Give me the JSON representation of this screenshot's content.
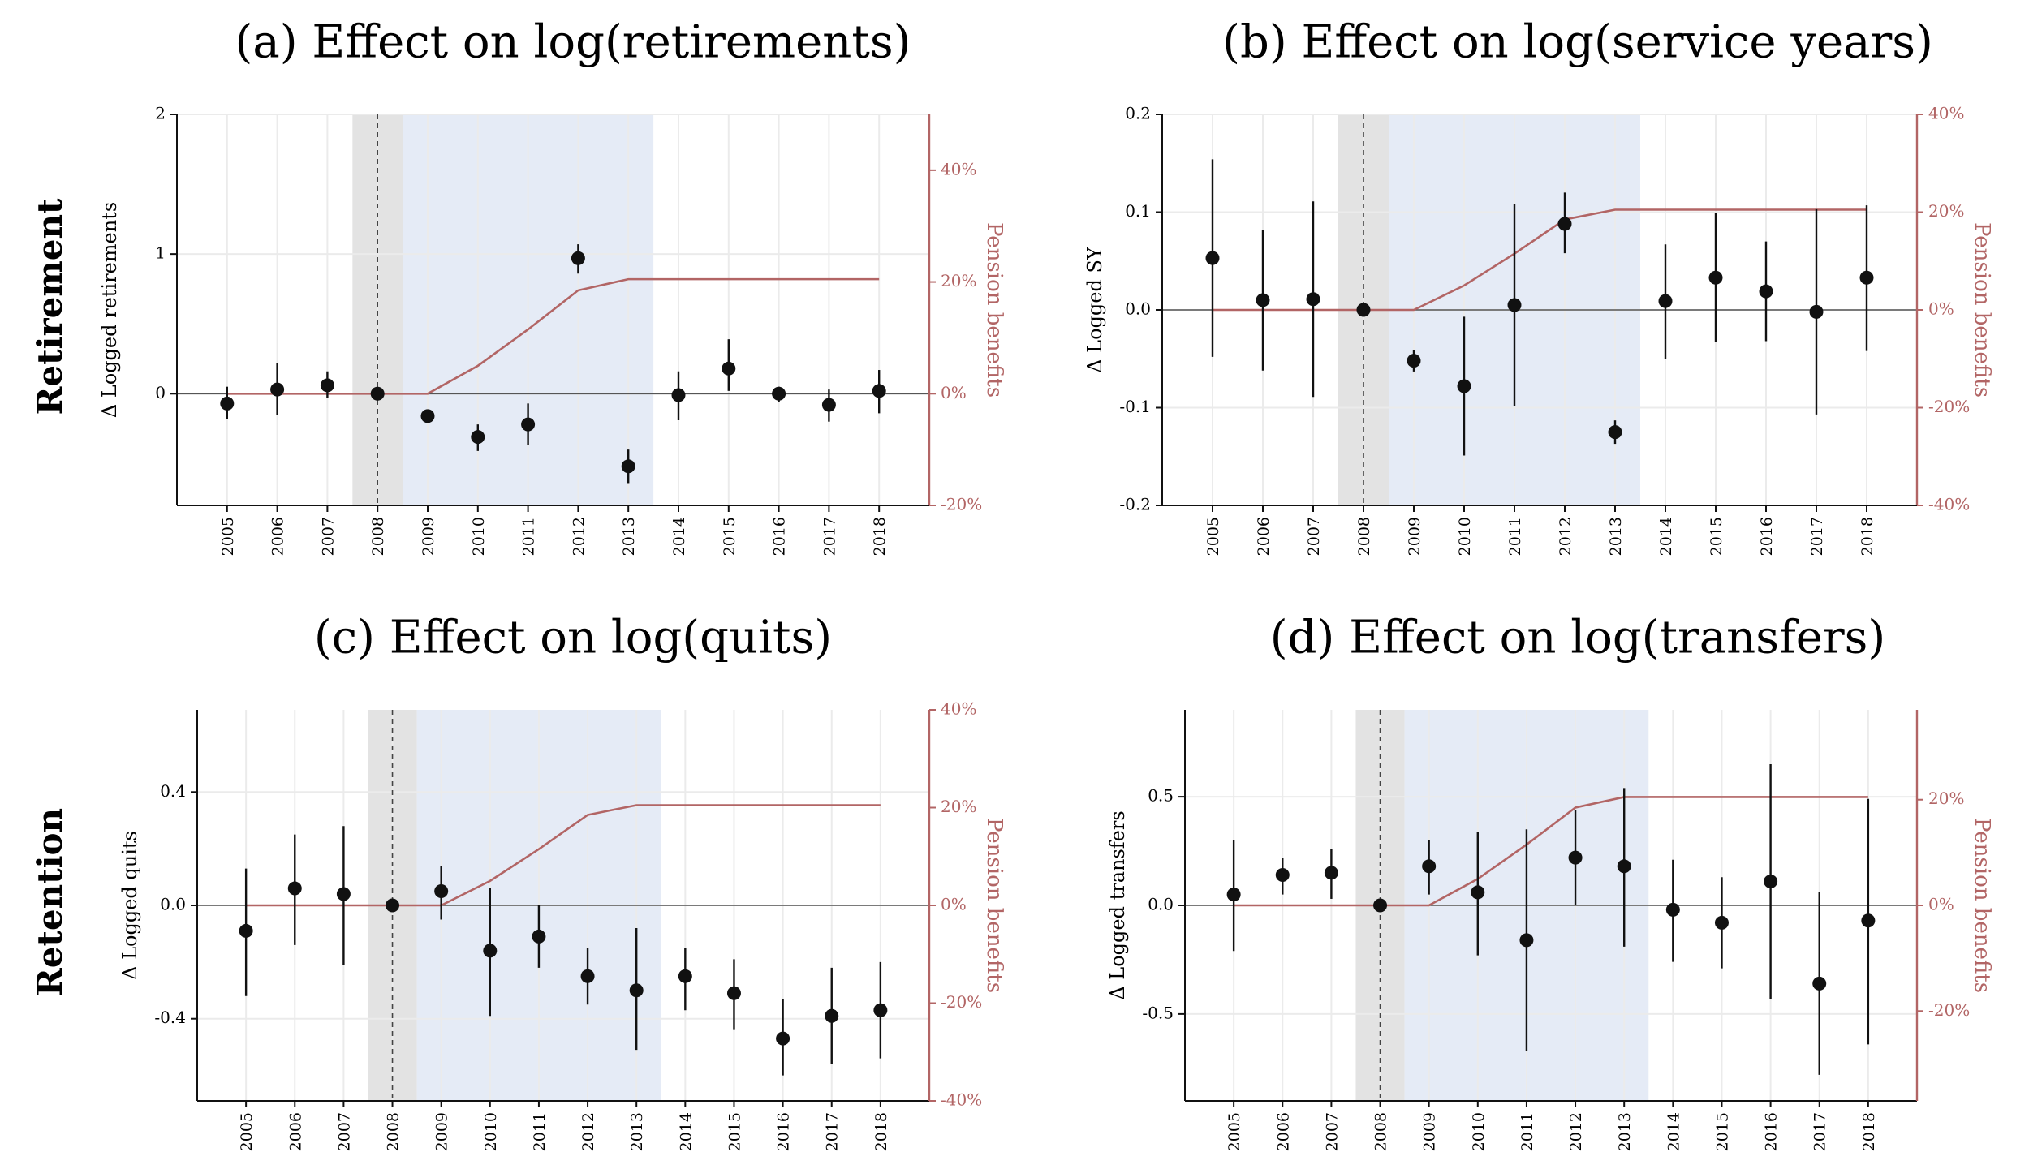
{
  "row_labels": [
    "Retirement",
    "Retention"
  ],
  "colors": {
    "pension_line": "#b26565",
    "pension_axis": "#b26565",
    "pension_text": "#b26565",
    "point": "#111111",
    "grey_band": "#e3e3e3",
    "blue_band": "#e5ebf6",
    "grid": "#ebebeb"
  },
  "chart_data": [
    {
      "type": "scatter",
      "title": "(a) Effect on log(retirements)",
      "ylabel": "Δ Logged retirements",
      "y2label": "Pension benefits",
      "categories": [
        "2005",
        "2006",
        "2007",
        "2008",
        "2009",
        "2010",
        "2011",
        "2012",
        "2013",
        "2014",
        "2015",
        "2016",
        "2017",
        "2018"
      ],
      "ylim": [
        -0.8,
        2
      ],
      "yticks": [
        0,
        1,
        2
      ],
      "ytick_labels": [
        "0",
        "1",
        "2"
      ],
      "y2lim": [
        -20,
        50
      ],
      "y2ticks": [
        -20,
        0,
        20,
        40
      ],
      "y2tick_labels": [
        "-20%",
        "0%",
        "20%",
        "40%"
      ],
      "grey_band": [
        "2007.5",
        "2008.5"
      ],
      "blue_band": [
        "2008.5",
        "2013.5"
      ],
      "reference_year": "2008",
      "estimates": [
        -0.07,
        0.03,
        0.06,
        0.0,
        -0.16,
        -0.31,
        -0.22,
        0.97,
        -0.52,
        -0.01,
        0.18,
        0.0,
        -0.08,
        0.02
      ],
      "ci_lower": [
        -0.18,
        -0.15,
        -0.03,
        0.0,
        -0.19,
        -0.41,
        -0.37,
        0.86,
        -0.64,
        -0.19,
        0.02,
        -0.06,
        -0.2,
        -0.14
      ],
      "ci_upper": [
        0.05,
        0.22,
        0.16,
        0.0,
        -0.13,
        -0.22,
        -0.07,
        1.07,
        -0.4,
        0.16,
        0.39,
        0.05,
        0.03,
        0.17
      ],
      "pension_benefits": [
        0,
        0,
        0,
        0,
        0,
        5,
        11.5,
        18.5,
        20.5,
        20.5,
        20.5,
        20.5,
        20.5,
        20.5
      ]
    },
    {
      "type": "scatter",
      "title": "(b) Effect on log(service years)",
      "ylabel": "Δ Logged SY",
      "y2label": "Pension benefits",
      "categories": [
        "2005",
        "2006",
        "2007",
        "2008",
        "2009",
        "2010",
        "2011",
        "2012",
        "2013",
        "2014",
        "2015",
        "2016",
        "2017",
        "2018"
      ],
      "ylim": [
        -0.2,
        0.2
      ],
      "yticks": [
        -0.2,
        -0.1,
        0.0,
        0.1,
        0.2
      ],
      "ytick_labels": [
        "-0.2",
        "-0.1",
        "0.0",
        "0.1",
        "0.2"
      ],
      "y2lim": [
        -40,
        40
      ],
      "y2ticks": [
        -40,
        -20,
        0,
        20,
        40
      ],
      "y2tick_labels": [
        "-40%",
        "-20%",
        "0%",
        "20%",
        "40%"
      ],
      "grey_band": [
        "2007.5",
        "2008.5"
      ],
      "blue_band": [
        "2008.5",
        "2013.5"
      ],
      "reference_year": "2008",
      "estimates": [
        0.053,
        0.01,
        0.011,
        0.0,
        -0.052,
        -0.078,
        0.005,
        0.088,
        -0.125,
        0.009,
        0.033,
        0.019,
        -0.002,
        0.033
      ],
      "ci_lower": [
        -0.048,
        -0.062,
        -0.089,
        0.0,
        -0.063,
        -0.149,
        -0.098,
        0.058,
        -0.137,
        -0.05,
        -0.033,
        -0.032,
        -0.107,
        -0.042
      ],
      "ci_upper": [
        0.154,
        0.082,
        0.111,
        0.0,
        -0.041,
        -0.007,
        0.108,
        0.12,
        -0.113,
        0.067,
        0.099,
        0.07,
        0.103,
        0.107
      ],
      "pension_benefits": [
        0,
        0,
        0,
        0,
        0,
        5,
        11.5,
        18.5,
        20.5,
        20.5,
        20.5,
        20.5,
        20.5,
        20.5
      ]
    },
    {
      "type": "scatter",
      "title": "(c) Effect on log(quits)",
      "ylabel": "Δ Logged quits",
      "y2label": "Pension benefits",
      "categories": [
        "2005",
        "2006",
        "2007",
        "2008",
        "2009",
        "2010",
        "2011",
        "2012",
        "2013",
        "2014",
        "2015",
        "2016",
        "2017",
        "2018"
      ],
      "ylim": [
        -0.69,
        0.69
      ],
      "yticks": [
        -0.4,
        0.0,
        0.4
      ],
      "ytick_labels": [
        "-0.4",
        "0.0",
        "0.4"
      ],
      "y2lim": [
        -40,
        40
      ],
      "y2ticks": [
        -40,
        -20,
        0,
        20,
        40
      ],
      "y2tick_labels": [
        "-40%",
        "-20%",
        "0%",
        "20%",
        "40%"
      ],
      "grey_band": [
        "2007.5",
        "2008.5"
      ],
      "blue_band": [
        "2008.5",
        "2013.5"
      ],
      "reference_year": "2008",
      "estimates": [
        -0.09,
        0.06,
        0.04,
        0.0,
        0.05,
        -0.16,
        -0.11,
        -0.25,
        -0.3,
        -0.25,
        -0.31,
        -0.47,
        -0.39,
        -0.37
      ],
      "ci_lower": [
        -0.32,
        -0.14,
        -0.21,
        0.0,
        -0.05,
        -0.39,
        -0.22,
        -0.35,
        -0.51,
        -0.37,
        -0.44,
        -0.6,
        -0.56,
        -0.54
      ],
      "ci_upper": [
        0.13,
        0.25,
        0.28,
        0.0,
        0.14,
        0.06,
        0.0,
        -0.15,
        -0.08,
        -0.15,
        -0.19,
        -0.33,
        -0.22,
        -0.2
      ],
      "pension_benefits": [
        0,
        0,
        0,
        0,
        0,
        5,
        11.5,
        18.5,
        20.5,
        20.5,
        20.5,
        20.5,
        20.5,
        20.5
      ]
    },
    {
      "type": "scatter",
      "title": "(d) Effect on log(transfers)",
      "ylabel": "Δ Logged transfers",
      "y2label": "Pension benefits",
      "categories": [
        "2005",
        "2006",
        "2007",
        "2008",
        "2009",
        "2010",
        "2011",
        "2012",
        "2013",
        "2014",
        "2015",
        "2016",
        "2017",
        "2018"
      ],
      "ylim": [
        -0.9,
        0.9
      ],
      "yticks": [
        -0.5,
        0.0,
        0.5
      ],
      "ytick_labels": [
        "-0.5",
        "0.0",
        "0.5"
      ],
      "y2lim": [
        -37,
        37
      ],
      "y2ticks": [
        -20,
        0,
        20
      ],
      "y2tick_labels": [
        "-20%",
        "0%",
        "20%"
      ],
      "grey_band": [
        "2007.5",
        "2008.5"
      ],
      "blue_band": [
        "2008.5",
        "2013.5"
      ],
      "reference_year": "2008",
      "estimates": [
        0.05,
        0.14,
        0.15,
        0.0,
        0.18,
        0.06,
        -0.16,
        0.22,
        0.18,
        -0.02,
        -0.08,
        0.11,
        -0.36,
        -0.07
      ],
      "ci_lower": [
        -0.21,
        0.05,
        0.03,
        0.0,
        0.05,
        -0.23,
        -0.67,
        0.0,
        -0.19,
        -0.26,
        -0.29,
        -0.43,
        -0.78,
        -0.64
      ],
      "ci_upper": [
        0.3,
        0.22,
        0.26,
        0.0,
        0.3,
        0.34,
        0.35,
        0.44,
        0.54,
        0.21,
        0.13,
        0.65,
        0.06,
        0.49
      ],
      "pension_benefits": [
        0,
        0,
        0,
        0,
        0,
        5,
        11.5,
        18.5,
        20.5,
        20.5,
        20.5,
        20.5,
        20.5,
        20.5
      ]
    }
  ]
}
